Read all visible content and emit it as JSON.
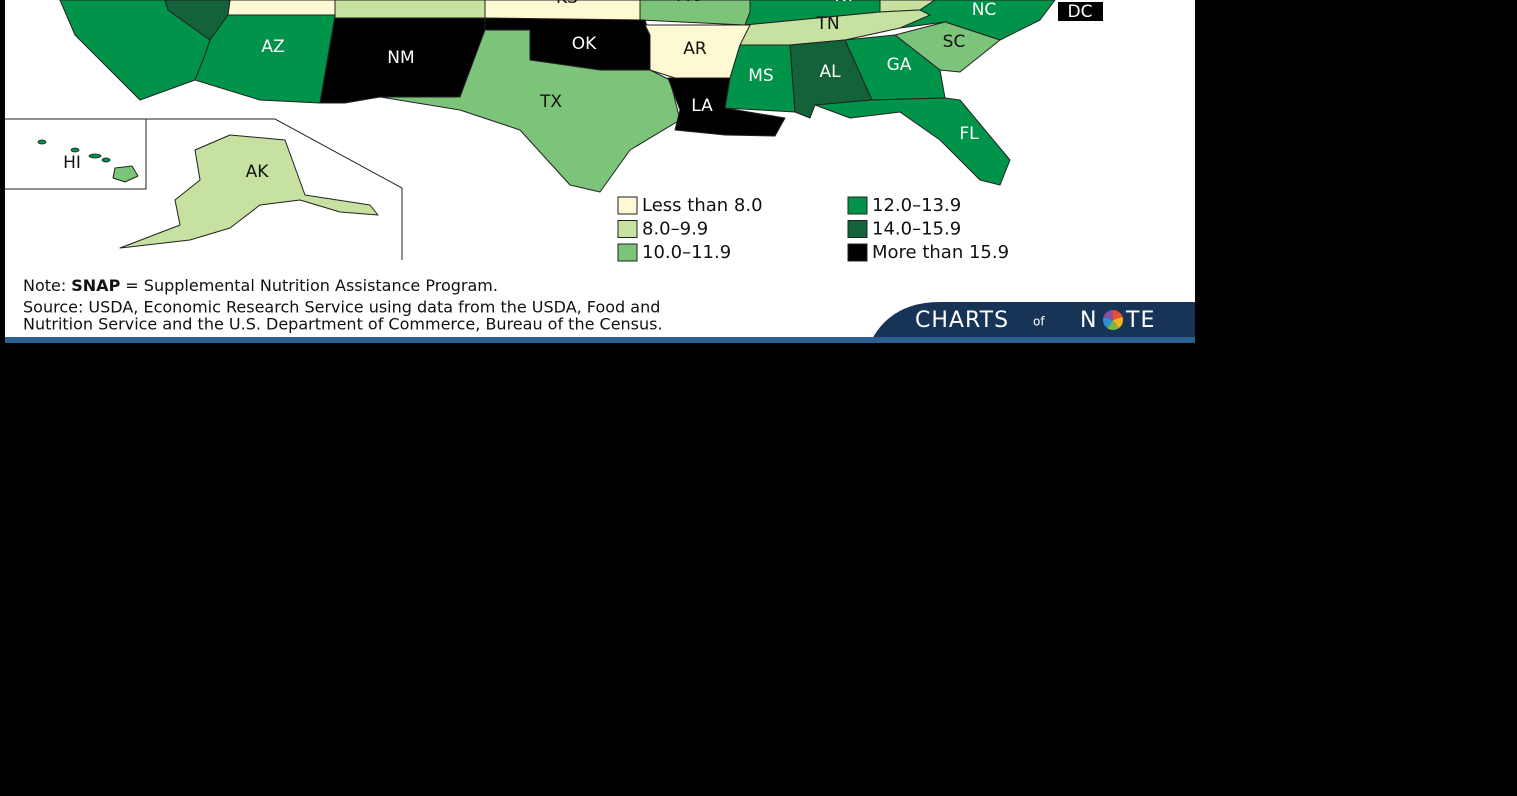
{
  "legend": {
    "items": [
      {
        "label": "Less than 8.0",
        "color": "#fdf9d2"
      },
      {
        "label": "8.0–9.9",
        "color": "#c6e1a0"
      },
      {
        "label": "10.0–11.9",
        "color": "#7dc47b"
      },
      {
        "label": "12.0–13.9",
        "color": "#00944b"
      },
      {
        "label": "14.0–15.9",
        "color": "#14623a"
      },
      {
        "label": "More than 15.9",
        "color": "#000000"
      }
    ]
  },
  "states": [
    {
      "label": "KS",
      "color": "#fdf9d2"
    },
    {
      "label": "MO",
      "color": "#7dc47b"
    },
    {
      "label": "KY",
      "color": "#00944b"
    },
    {
      "label": "NC",
      "color": "#00944b"
    },
    {
      "label": "DC",
      "color": "#000000"
    },
    {
      "label": "TN",
      "color": "#c6e1a0"
    },
    {
      "label": "AZ",
      "color": "#00944b"
    },
    {
      "label": "NM",
      "color": "#000000"
    },
    {
      "label": "OK",
      "color": "#000000"
    },
    {
      "label": "AR",
      "color": "#fdf9d2"
    },
    {
      "label": "SC",
      "color": "#7dc47b"
    },
    {
      "label": "MS",
      "color": "#00944b"
    },
    {
      "label": "AL",
      "color": "#14623a"
    },
    {
      "label": "GA",
      "color": "#00944b"
    },
    {
      "label": "TX",
      "color": "#7dc47b"
    },
    {
      "label": "LA",
      "color": "#000000"
    },
    {
      "label": "FL",
      "color": "#00944b"
    },
    {
      "label": "HI",
      "color": "#7dc47b"
    },
    {
      "label": "AK",
      "color": "#c6e1a0"
    }
  ],
  "note": {
    "prefix": "Note:",
    "term": "SNAP",
    "text": "= Supplemental Nutrition Assistance Program."
  },
  "source": [
    "Source: USDA, Economic Research Service using data from the USDA, Food and",
    "Nutrition Service and the U.S. Department of Commerce, Bureau of the Census."
  ],
  "logo": {
    "first": "CHARTS",
    "middle": "of",
    "start": "N",
    "end": "TE"
  }
}
